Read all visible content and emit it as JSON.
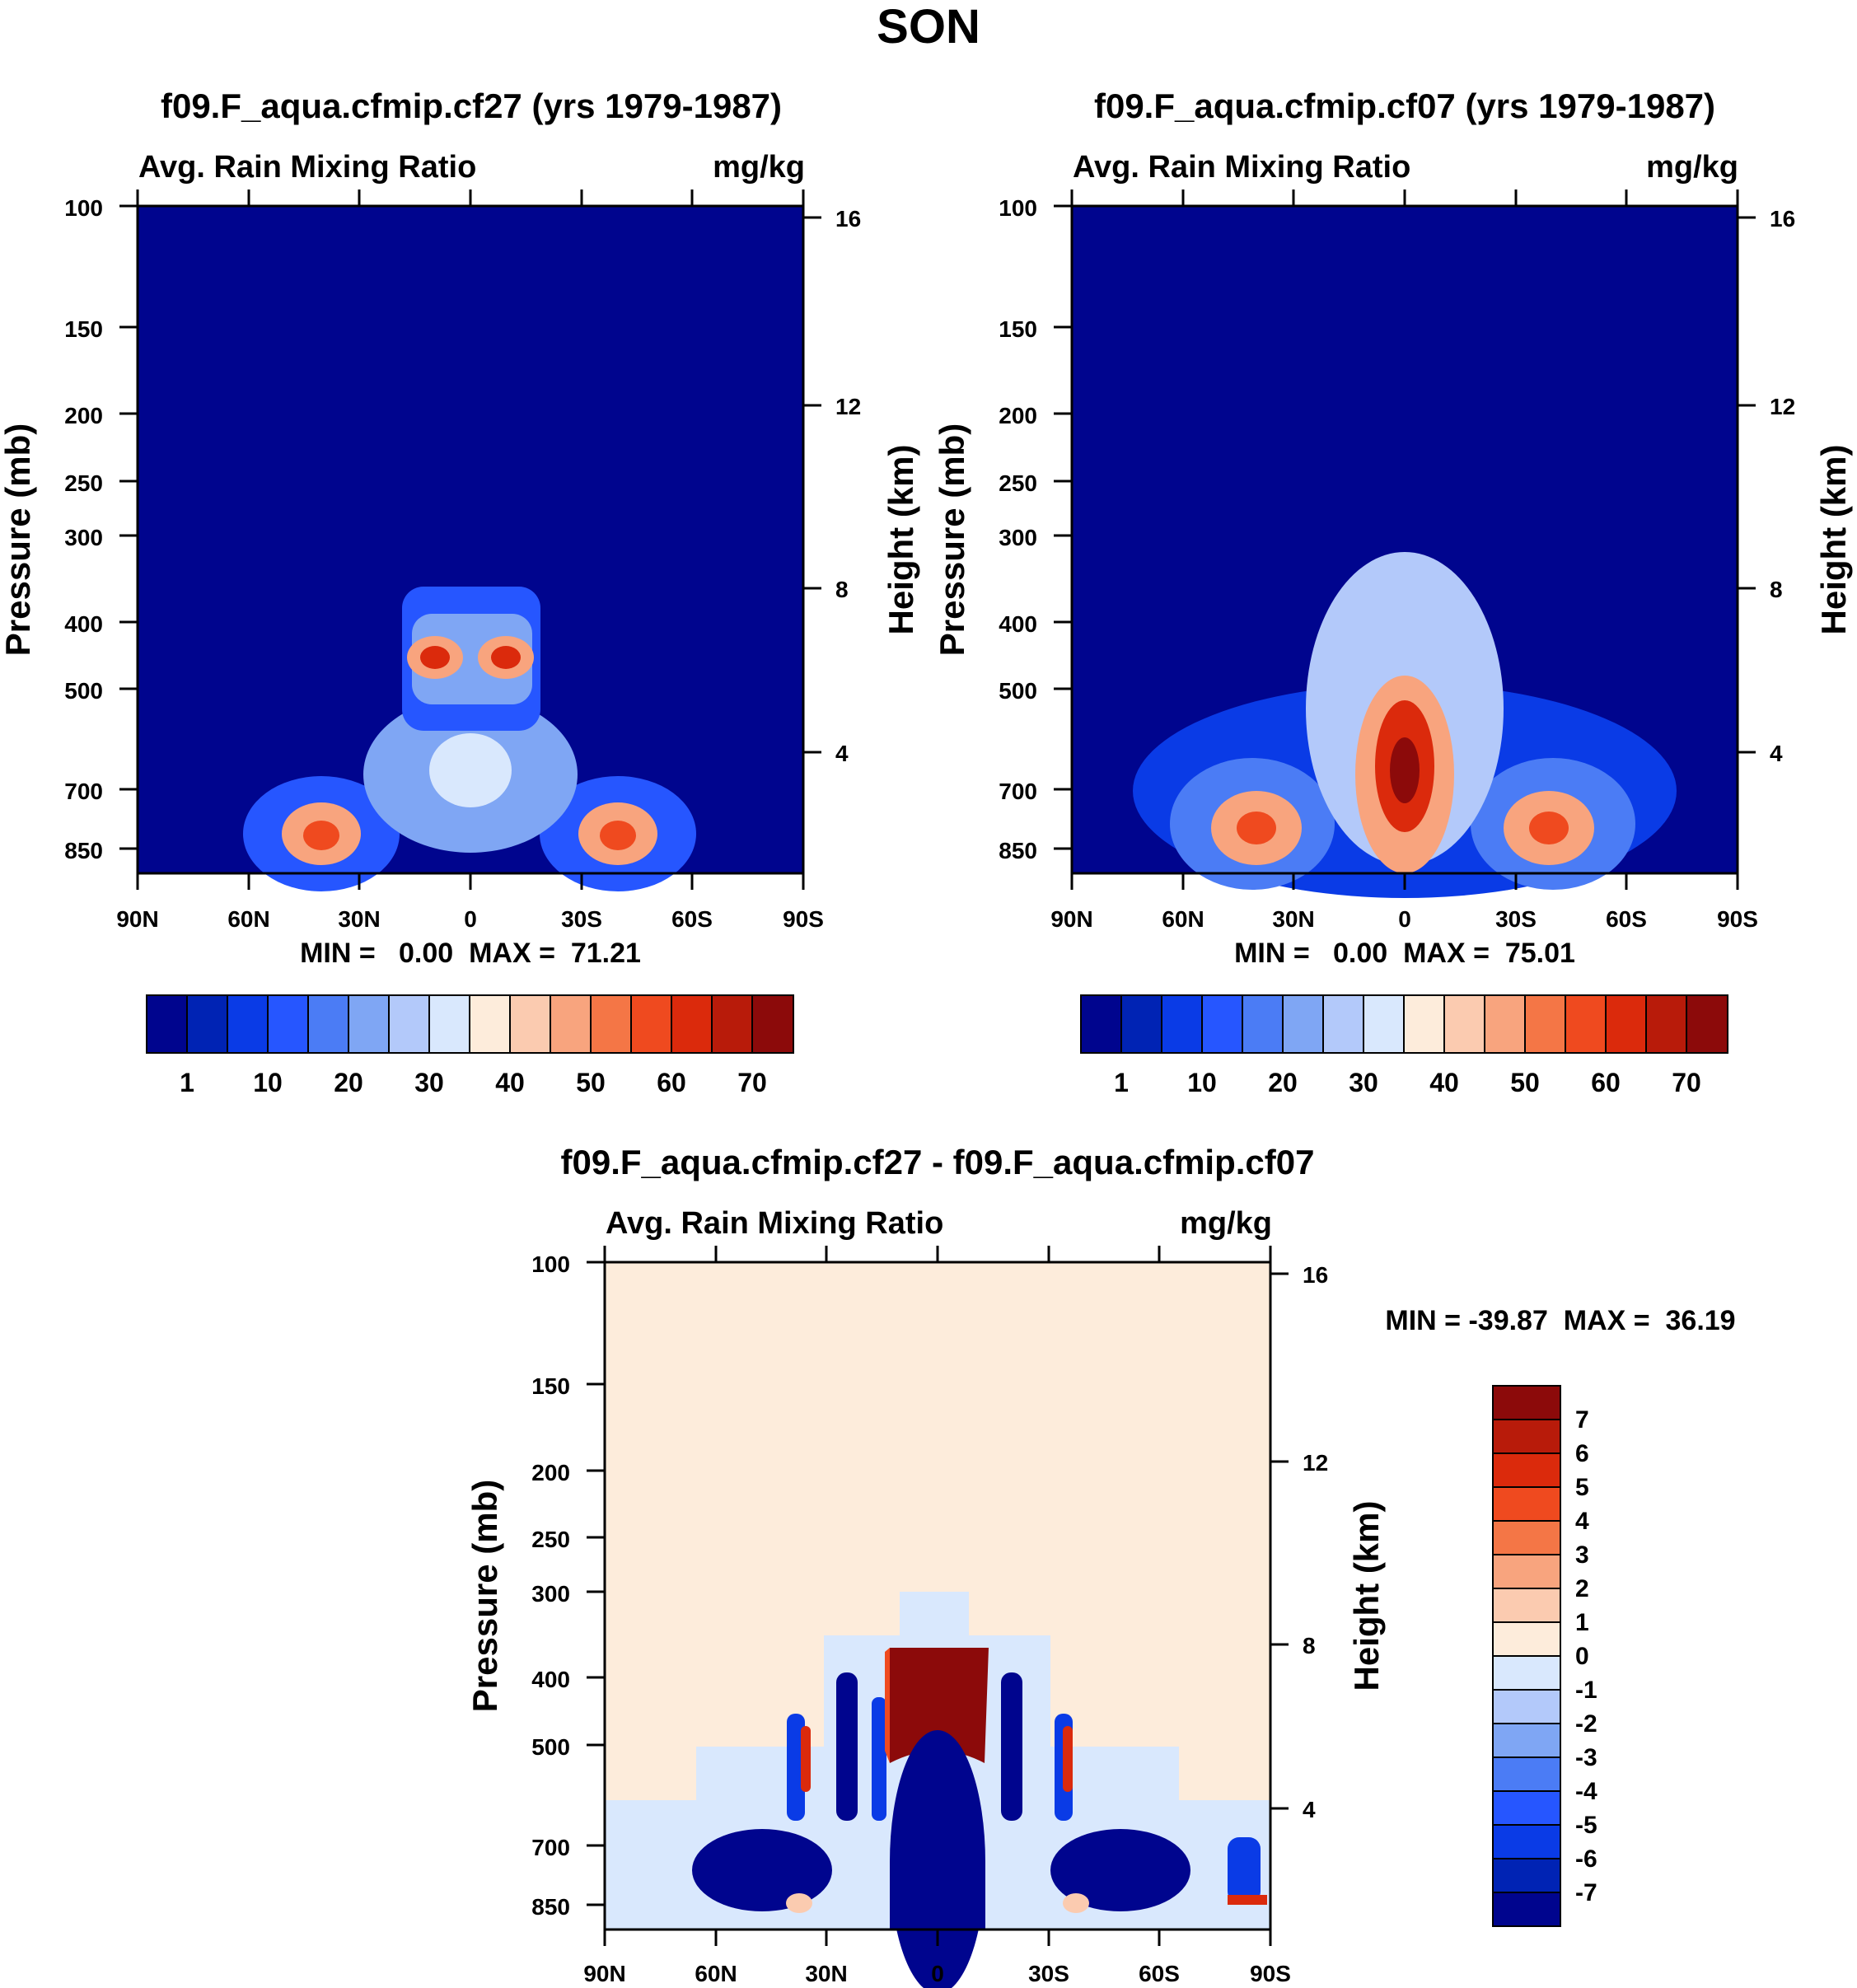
{
  "figure_title": "SON",
  "colors": {
    "seq": [
      "#00058e",
      "#0023b4",
      "#0a3be6",
      "#2656ff",
      "#4b7cf5",
      "#7fa6f4",
      "#b3c9fa",
      "#d9e8fd",
      "#fdecdb",
      "#fbcbb0",
      "#f8a47e",
      "#f47646",
      "#ef4a1f",
      "#db2a0c",
      "#b81b0a",
      "#8c0a0a"
    ],
    "div": [
      "#00058e",
      "#0023b4",
      "#0a3be6",
      "#2656ff",
      "#4b7cf5",
      "#7fa6f4",
      "#b3c9fa",
      "#d9e8fd",
      "#fdecdb",
      "#fbcbb0",
      "#f8a47e",
      "#f47646",
      "#ef4a1f",
      "#db2a0c",
      "#b81b0a",
      "#8c0a0a"
    ]
  },
  "chart_data": [
    {
      "type": "heatmap",
      "title": "f09.F_aqua.cfmip.cf27 (yrs 1979-1987)",
      "left_label": "Avg. Rain Mixing Ratio",
      "right_label": "mg/kg",
      "ylabel": "Pressure (mb)",
      "y2label": "Height (km)",
      "x_ticks": [
        "90N",
        "60N",
        "30N",
        "0",
        "30S",
        "60S",
        "90S"
      ],
      "x_values": [
        90,
        60,
        30,
        0,
        -30,
        -60,
        -90
      ],
      "y_ticks": [
        "100",
        "150",
        "200",
        "250",
        "300",
        "400",
        "500",
        "700",
        "850"
      ],
      "y_values": [
        100,
        150,
        200,
        250,
        300,
        400,
        500,
        700,
        850
      ],
      "ylim": [
        100,
        1000
      ],
      "y2_ticks": [
        "16",
        "12",
        "8",
        "4"
      ],
      "y2_values": [
        16,
        12,
        8,
        4
      ],
      "stats": "MIN =   0.00  MAX =  71.21",
      "min": 0.0,
      "max": 71.21,
      "colorbar_levels": [
        1,
        5,
        10,
        15,
        20,
        25,
        30,
        35,
        40,
        45,
        50,
        55,
        60,
        65,
        70
      ],
      "colorbar_labels": [
        "1",
        "10",
        "20",
        "30",
        "40",
        "50",
        "60",
        "70"
      ],
      "colorbar_label_levels": [
        1,
        10,
        20,
        30,
        40,
        50,
        60,
        70
      ],
      "features": [
        {
          "lat": 30,
          "p": 860,
          "v": 68
        },
        {
          "lat": -30,
          "p": 860,
          "v": 66
        },
        {
          "lat": 8,
          "p": 440,
          "v": 71
        },
        {
          "lat": -8,
          "p": 440,
          "v": 70
        },
        {
          "lat": 0,
          "p": 650,
          "v": 32
        }
      ]
    },
    {
      "type": "heatmap",
      "title": "f09.F_aqua.cfmip.cf07 (yrs 1979-1987)",
      "left_label": "Avg. Rain Mixing Ratio",
      "right_label": "mg/kg",
      "ylabel": "Pressure (mb)",
      "y2label": "Height (km)",
      "x_ticks": [
        "90N",
        "60N",
        "30N",
        "0",
        "30S",
        "60S",
        "90S"
      ],
      "x_values": [
        90,
        60,
        30,
        0,
        -30,
        -60,
        -90
      ],
      "y_ticks": [
        "100",
        "150",
        "200",
        "250",
        "300",
        "400",
        "500",
        "700",
        "850"
      ],
      "y_values": [
        100,
        150,
        200,
        250,
        300,
        400,
        500,
        700,
        850
      ],
      "ylim": [
        100,
        1000
      ],
      "y2_ticks": [
        "16",
        "12",
        "8",
        "4"
      ],
      "y2_values": [
        16,
        12,
        8,
        4
      ],
      "stats": "MIN =   0.00  MAX =  75.01",
      "min": 0.0,
      "max": 75.01,
      "colorbar_levels": [
        1,
        5,
        10,
        15,
        20,
        25,
        30,
        35,
        40,
        45,
        50,
        55,
        60,
        65,
        70
      ],
      "colorbar_labels": [
        "1",
        "10",
        "20",
        "30",
        "40",
        "50",
        "60",
        "70"
      ],
      "colorbar_label_levels": [
        1,
        10,
        20,
        30,
        40,
        50,
        60,
        70
      ],
      "features": [
        {
          "lat": 0,
          "p": 660,
          "v": 75
        },
        {
          "lat": 35,
          "p": 830,
          "v": 58
        },
        {
          "lat": -35,
          "p": 830,
          "v": 55
        }
      ]
    },
    {
      "type": "heatmap",
      "title": "f09.F_aqua.cfmip.cf27 - f09.F_aqua.cfmip.cf07",
      "left_label": "Avg. Rain Mixing Ratio",
      "right_label": "mg/kg",
      "ylabel": "Pressure (mb)",
      "y2label": "Height (km)",
      "x_ticks": [
        "90N",
        "60N",
        "30N",
        "0",
        "30S",
        "60S",
        "90S"
      ],
      "x_values": [
        90,
        60,
        30,
        0,
        -30,
        -60,
        -90
      ],
      "y_ticks": [
        "100",
        "150",
        "200",
        "250",
        "300",
        "400",
        "500",
        "700",
        "850"
      ],
      "y_values": [
        100,
        150,
        200,
        250,
        300,
        400,
        500,
        700,
        850
      ],
      "ylim": [
        100,
        1000
      ],
      "y2_ticks": [
        "16",
        "12",
        "8",
        "4"
      ],
      "y2_values": [
        16,
        12,
        8,
        4
      ],
      "stats": "MIN = -39.87  MAX =  36.19",
      "min": -39.87,
      "max": 36.19,
      "colorbar_levels": [
        -7,
        -6,
        -5,
        -4,
        -3,
        -2,
        -1,
        0,
        1,
        2,
        3,
        4,
        5,
        6,
        7
      ],
      "colorbar_labels": [
        "7",
        "6",
        "5",
        "4",
        "3",
        "2",
        "1",
        "0",
        "-1",
        "-2",
        "-3",
        "-4",
        "-5",
        "-6",
        "-7"
      ],
      "colorbar_label_levels": [
        7,
        6,
        5,
        4,
        3,
        2,
        1,
        0,
        -1,
        -2,
        -3,
        -4,
        -5,
        -6,
        -7
      ],
      "features": [
        {
          "lat": 0,
          "p": 440,
          "v": 36.19
        },
        {
          "lat": 0,
          "p": 780,
          "v": -39.87
        }
      ]
    }
  ]
}
